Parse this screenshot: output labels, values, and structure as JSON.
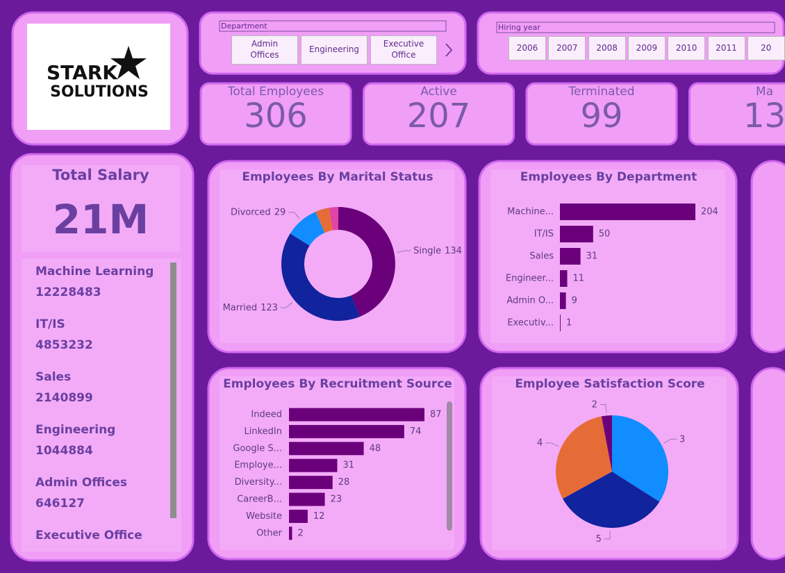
{
  "logo": {
    "line1": "STARK",
    "line2": "SOLUTIONS"
  },
  "department_slicer": {
    "title": "Department",
    "items": [
      "Admin Offices",
      "Engineering",
      "Executive Office"
    ]
  },
  "hiring_year_slicer": {
    "title": "Hiring year",
    "items": [
      "2006",
      "2007",
      "2008",
      "2009",
      "2010",
      "2011",
      "20"
    ]
  },
  "kpis": [
    {
      "label": "Total Employees",
      "value": 306
    },
    {
      "label": "Active",
      "value": 207
    },
    {
      "label": "Terminated",
      "value": 99
    },
    {
      "label": "Ma",
      "value": 13
    }
  ],
  "salary": {
    "title": "Total Salary",
    "total": "21M",
    "departments": [
      {
        "name": "Machine Learning",
        "value": 12228483
      },
      {
        "name": "IT/IS",
        "value": 4853232
      },
      {
        "name": "Sales",
        "value": 2140899
      },
      {
        "name": "Engineering",
        "value": 1044884
      },
      {
        "name": "Admin Offices",
        "value": 646127
      },
      {
        "name": "Executive Office"
      }
    ]
  },
  "charts": [
    {
      "type": "donut",
      "title": "Employees By Marital Status",
      "categories": [
        "Single",
        "Married",
        "Divorced",
        null,
        null
      ],
      "values": [
        134,
        123,
        29,
        12,
        8
      ],
      "colors": [
        "#6b007b",
        "#12239e",
        "#118dff",
        "#e66c37",
        "#e044a7"
      ]
    },
    {
      "type": "hbar",
      "title": "Employees By Department",
      "categories": [
        "Machine...",
        "IT/IS",
        "Sales",
        "Engineer...",
        "Admin O...",
        "Executiv..."
      ],
      "values": [
        204,
        50,
        31,
        11,
        9,
        1
      ],
      "color": "#6b007b"
    },
    {
      "type": "hbar",
      "title": "Employees By Recruitment Source",
      "categories": [
        "Indeed",
        "LinkedIn",
        "Google S...",
        "Employe...",
        "Diversity...",
        "CareerB...",
        "Website",
        "Other"
      ],
      "values": [
        87,
        74,
        48,
        31,
        28,
        23,
        12,
        2
      ],
      "color": "#6b007b"
    },
    {
      "type": "pie",
      "title": "Employee Satisfaction Score",
      "categories": [
        "3",
        "5",
        "4",
        "2"
      ],
      "values": [
        34,
        33,
        30,
        3
      ],
      "colors": [
        "#118dff",
        "#12239e",
        "#e66c37",
        "#6b007b"
      ]
    }
  ]
}
